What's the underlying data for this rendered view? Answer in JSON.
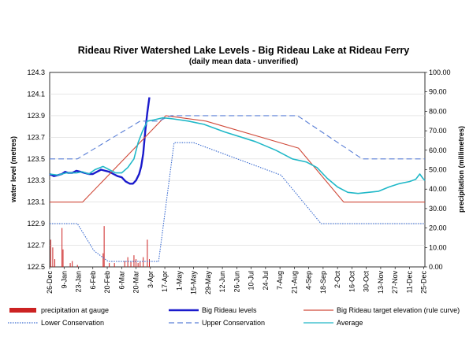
{
  "chart_data": {
    "type": "line",
    "title": "Rideau River Watershed Lake Levels - Big Rideau Lake at Rideau Ferry",
    "subtitle": "(daily mean data - unverified)",
    "ylabel": "water level (metres)",
    "y2label": "precipitation (millimetres)",
    "ylim": [
      122.5,
      124.3
    ],
    "y_ticks": [
      "124.3",
      "124.1",
      "123.9",
      "123.7",
      "123.5",
      "123.3",
      "123.1",
      "122.9",
      "122.7",
      "122.5"
    ],
    "y2lim": [
      0,
      100
    ],
    "y2_ticks": [
      "100.00",
      "90.00",
      "80.00",
      "70.00",
      "60.00",
      "50.00",
      "40.00",
      "30.00",
      "20.00",
      "10.00",
      "0.00"
    ],
    "x_ticks": [
      "26-Dec",
      "9-Jan",
      "23-Jan",
      "6-Feb",
      "20-Feb",
      "6-Mar",
      "20-Mar",
      "3-Apr",
      "17-Apr",
      "1-May",
      "15-May",
      "29-May",
      "12-Jun",
      "26-Jun",
      "10-Jul",
      "24-Jul",
      "7-Aug",
      "21-Aug",
      "4-Sep",
      "18-Sep",
      "2-Oct",
      "16-Oct",
      "30-Oct",
      "13-Nov",
      "27-Nov",
      "11-Dec",
      "25-Dec"
    ],
    "grid": true,
    "legend_position": "bottom",
    "series": [
      {
        "name": "precipitation at gauge",
        "kind": "bar",
        "axis": "y2",
        "color": "#cc2222",
        "points": [
          [
            1,
            14
          ],
          [
            3,
            10
          ],
          [
            5,
            4
          ],
          [
            12,
            20
          ],
          [
            13,
            9
          ],
          [
            20,
            2
          ],
          [
            22,
            3
          ],
          [
            27,
            1
          ],
          [
            52,
            7
          ],
          [
            53,
            21
          ],
          [
            58,
            2
          ],
          [
            63,
            2
          ],
          [
            73,
            3
          ],
          [
            76,
            5
          ],
          [
            79,
            3
          ],
          [
            82,
            6
          ],
          [
            84,
            4
          ],
          [
            86,
            2
          ],
          [
            88,
            3
          ],
          [
            91,
            5
          ],
          [
            95,
            14
          ],
          [
            97,
            4
          ]
        ]
      },
      {
        "name": "Big Rideau levels",
        "kind": "line",
        "axis": "y",
        "color": "#1a1acc",
        "points": [
          [
            0,
            123.36
          ],
          [
            4,
            123.34
          ],
          [
            8,
            123.35
          ],
          [
            12,
            123.36
          ],
          [
            15,
            123.38
          ],
          [
            18,
            123.37
          ],
          [
            22,
            123.37
          ],
          [
            26,
            123.39
          ],
          [
            30,
            123.38
          ],
          [
            34,
            123.37
          ],
          [
            38,
            123.36
          ],
          [
            42,
            123.36
          ],
          [
            46,
            123.38
          ],
          [
            50,
            123.4
          ],
          [
            54,
            123.39
          ],
          [
            58,
            123.38
          ],
          [
            62,
            123.36
          ],
          [
            66,
            123.34
          ],
          [
            70,
            123.33
          ],
          [
            74,
            123.29
          ],
          [
            78,
            123.27
          ],
          [
            81,
            123.27
          ],
          [
            84,
            123.3
          ],
          [
            87,
            123.36
          ],
          [
            89,
            123.43
          ],
          [
            91,
            123.55
          ],
          [
            93,
            123.76
          ],
          [
            95,
            123.93
          ],
          [
            97,
            124.07
          ]
        ]
      },
      {
        "name": "Big Rideau target elevation (rule curve)",
        "kind": "line",
        "axis": "y",
        "color": "#d04a3a",
        "points": [
          [
            0,
            123.1
          ],
          [
            32,
            123.1
          ],
          [
            113,
            123.9
          ],
          [
            152,
            123.85
          ],
          [
            242,
            123.6
          ],
          [
            286,
            123.1
          ],
          [
            365,
            123.1
          ]
        ]
      },
      {
        "name": "Lower Conservation",
        "kind": "line",
        "axis": "y",
        "dash": "dotted",
        "color": "#3a6bd0",
        "points": [
          [
            0,
            122.9
          ],
          [
            27,
            122.9
          ],
          [
            43,
            122.65
          ],
          [
            57,
            122.55
          ],
          [
            90,
            122.55
          ],
          [
            106,
            122.55
          ],
          [
            121,
            123.65
          ],
          [
            140,
            123.65
          ],
          [
            225,
            123.35
          ],
          [
            264,
            122.9
          ],
          [
            365,
            122.9
          ]
        ]
      },
      {
        "name": "Upper Conservation",
        "kind": "line",
        "axis": "y",
        "dash": "dashed",
        "color": "#5a7fd6",
        "points": [
          [
            0,
            123.5
          ],
          [
            27,
            123.5
          ],
          [
            88,
            123.85
          ],
          [
            106,
            123.85
          ],
          [
            118,
            123.9
          ],
          [
            241,
            123.9
          ],
          [
            304,
            123.5
          ],
          [
            365,
            123.5
          ]
        ]
      },
      {
        "name": "Average",
        "kind": "line",
        "axis": "y",
        "color": "#20b8c8",
        "points": [
          [
            0,
            123.36
          ],
          [
            8,
            123.35
          ],
          [
            16,
            123.37
          ],
          [
            26,
            123.37
          ],
          [
            32,
            123.38
          ],
          [
            38,
            123.36
          ],
          [
            44,
            123.4
          ],
          [
            52,
            123.43
          ],
          [
            58,
            123.4
          ],
          [
            64,
            123.37
          ],
          [
            70,
            123.37
          ],
          [
            76,
            123.42
          ],
          [
            82,
            123.5
          ],
          [
            86,
            123.65
          ],
          [
            90,
            123.75
          ],
          [
            95,
            123.85
          ],
          [
            101,
            123.86
          ],
          [
            110,
            123.88
          ],
          [
            120,
            123.87
          ],
          [
            135,
            123.85
          ],
          [
            150,
            123.82
          ],
          [
            170,
            123.75
          ],
          [
            200,
            123.66
          ],
          [
            220,
            123.58
          ],
          [
            236,
            123.5
          ],
          [
            250,
            123.47
          ],
          [
            260,
            123.42
          ],
          [
            270,
            123.32
          ],
          [
            280,
            123.24
          ],
          [
            290,
            123.19
          ],
          [
            300,
            123.18
          ],
          [
            310,
            123.19
          ],
          [
            320,
            123.2
          ],
          [
            330,
            123.24
          ],
          [
            340,
            123.27
          ],
          [
            350,
            123.29
          ],
          [
            356,
            123.31
          ],
          [
            360,
            123.36
          ],
          [
            363,
            123.32
          ],
          [
            365,
            123.3
          ]
        ]
      }
    ]
  }
}
